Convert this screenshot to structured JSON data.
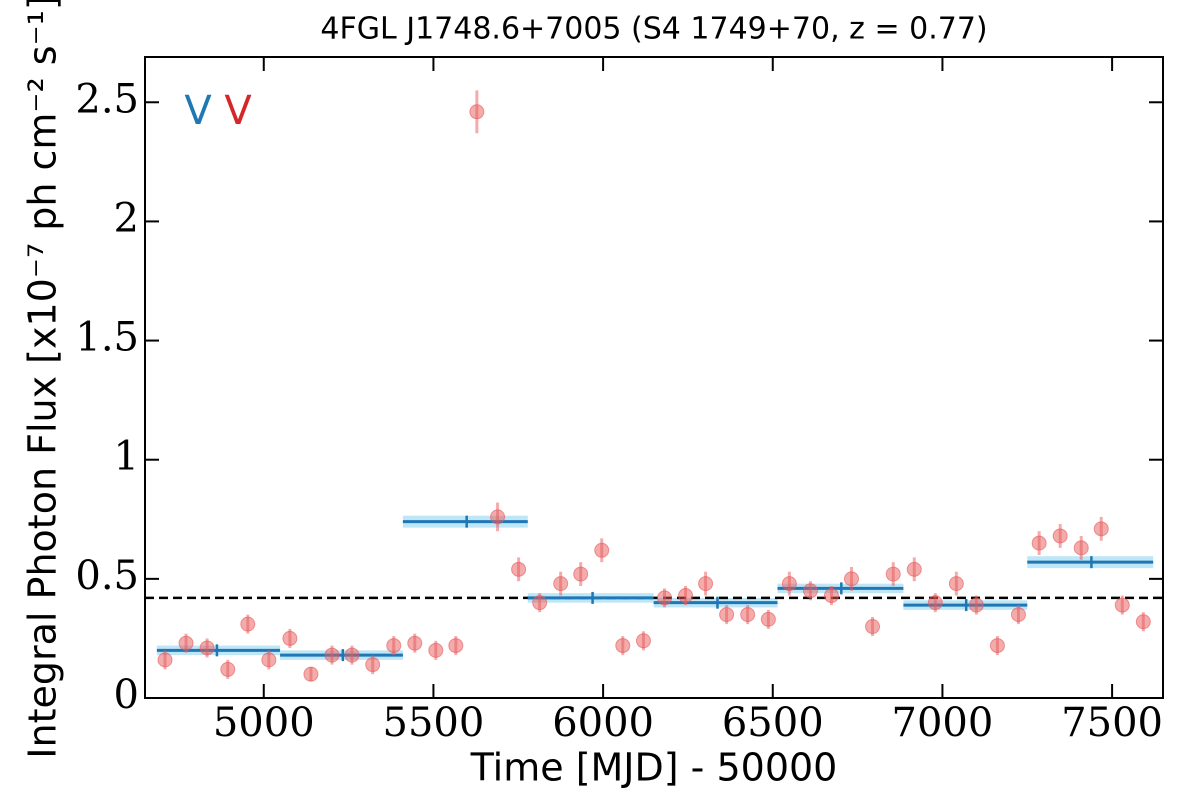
{
  "chart_data": {
    "type": "scatter",
    "title": "4FGL J1748.6+7005 (S4 1749+70, z = 0.77)",
    "xlabel": "Time [MJD] - 50000",
    "ylabel": "Integral Photon Flux [x10⁻⁷ ph cm⁻² s⁻¹]",
    "xlim": [
      4650,
      7650
    ],
    "ylim": [
      0,
      2.69
    ],
    "xticks": [
      5000,
      5500,
      6000,
      6500,
      7000,
      7500
    ],
    "yticks": [
      0,
      0.5,
      1,
      1.5,
      2,
      2.5
    ],
    "points": {
      "color": "#e8595a",
      "x": [
        4709,
        4771,
        4833,
        4894,
        4953,
        5015,
        5077,
        5139,
        5201,
        5260,
        5321,
        5383,
        5445,
        5507,
        5566,
        5628,
        5689,
        5751,
        5813,
        5875,
        5934,
        5996,
        6058,
        6119,
        6181,
        6243,
        6302,
        6364,
        6426,
        6487,
        6549,
        6611,
        6673,
        6732,
        6794,
        6855,
        6917,
        6979,
        7041,
        7100,
        7162,
        7224,
        7285,
        7347,
        7409,
        7468,
        7530,
        7592
      ],
      "y": [
        0.16,
        0.23,
        0.21,
        0.12,
        0.31,
        0.16,
        0.25,
        0.1,
        0.18,
        0.18,
        0.14,
        0.22,
        0.23,
        0.2,
        0.22,
        2.46,
        0.76,
        0.54,
        0.4,
        0.48,
        0.52,
        0.62,
        0.22,
        0.24,
        0.42,
        0.43,
        0.48,
        0.35,
        0.35,
        0.33,
        0.48,
        0.45,
        0.43,
        0.5,
        0.3,
        0.52,
        0.54,
        0.4,
        0.48,
        0.39,
        0.22,
        0.35,
        0.65,
        0.68,
        0.63,
        0.71,
        0.39,
        0.32
      ],
      "yerr": [
        0.04,
        0.04,
        0.04,
        0.04,
        0.04,
        0.04,
        0.04,
        0.03,
        0.04,
        0.04,
        0.04,
        0.04,
        0.04,
        0.04,
        0.04,
        0.09,
        0.06,
        0.05,
        0.04,
        0.05,
        0.05,
        0.05,
        0.04,
        0.04,
        0.04,
        0.04,
        0.05,
        0.04,
        0.04,
        0.04,
        0.05,
        0.04,
        0.04,
        0.05,
        0.04,
        0.05,
        0.05,
        0.04,
        0.05,
        0.04,
        0.04,
        0.04,
        0.05,
        0.05,
        0.05,
        0.05,
        0.04,
        0.04
      ]
    },
    "blocks": {
      "color": "#1f77b4",
      "band_color": "#aee0f5",
      "x_start": [
        4685,
        5048,
        5410,
        5778,
        6149,
        6514,
        6885,
        7250
      ],
      "x_end": [
        5048,
        5410,
        5778,
        6149,
        6514,
        6885,
        7250,
        7621
      ],
      "x_center": [
        4862,
        5233,
        5598,
        5969,
        6337,
        6702,
        7070,
        7439
      ],
      "y": [
        0.2,
        0.18,
        0.74,
        0.42,
        0.4,
        0.46,
        0.39,
        0.57
      ],
      "yerr": [
        0.02,
        0.02,
        0.025,
        0.02,
        0.02,
        0.02,
        0.02,
        0.025
      ]
    },
    "mean_line": {
      "y": 0.42,
      "color": "#000000"
    },
    "annotations": [
      {
        "text": "V",
        "color": "#1f77b4"
      },
      {
        "text": "V",
        "color": "#d62728"
      }
    ]
  }
}
